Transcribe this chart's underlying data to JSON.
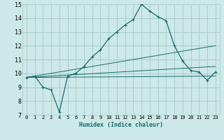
{
  "xlabel": "Humidex (Indice chaleur)",
  "background_color": "#cce8e8",
  "grid_color": "#aacccc",
  "line_color": "#1a6b6b",
  "xlim": [
    -0.5,
    23.5
  ],
  "ylim": [
    7,
    15
  ],
  "xticks": [
    0,
    1,
    2,
    3,
    4,
    5,
    6,
    7,
    8,
    9,
    10,
    11,
    12,
    13,
    14,
    15,
    16,
    17,
    18,
    19,
    20,
    21,
    22,
    23
  ],
  "yticks": [
    7,
    8,
    9,
    10,
    11,
    12,
    13,
    14,
    15
  ],
  "lines": [
    {
      "x": [
        0,
        1,
        2,
        3,
        4,
        5,
        6,
        7,
        8,
        9,
        10,
        11,
        12,
        13,
        14,
        15,
        16,
        17,
        18,
        19,
        20,
        21,
        22,
        23
      ],
      "y": [
        9.7,
        9.8,
        9.0,
        8.8,
        7.2,
        9.8,
        10.0,
        10.5,
        11.2,
        11.7,
        12.5,
        13.0,
        13.5,
        13.9,
        15.0,
        14.5,
        14.1,
        13.8,
        12.0,
        10.9,
        10.2,
        10.1,
        9.5,
        10.1
      ],
      "marker": true
    },
    {
      "x": [
        0,
        23
      ],
      "y": [
        9.7,
        12.0
      ],
      "marker": false
    },
    {
      "x": [
        0,
        23
      ],
      "y": [
        9.7,
        10.5
      ],
      "marker": false
    },
    {
      "x": [
        0,
        23
      ],
      "y": [
        9.7,
        9.8
      ],
      "marker": false
    }
  ]
}
